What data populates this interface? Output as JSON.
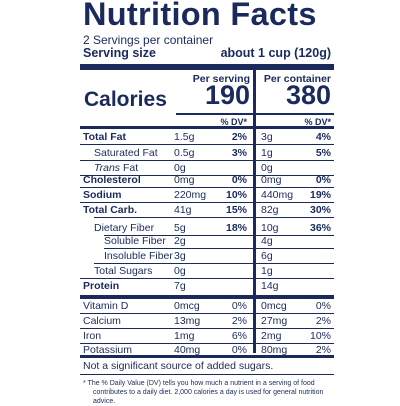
{
  "title": "Nutrition Facts",
  "servings": "2 Servings per container",
  "serving_size": {
    "label": "Serving size",
    "value": "about 1 cup (120g)"
  },
  "columns": {
    "per_serving": "Per serving",
    "per_container": "Per container"
  },
  "calories": {
    "label": "Calories",
    "per_serving": "190",
    "per_container": "380"
  },
  "dv_header": "% DV*",
  "nutrients": [
    {
      "name": "Total Fat",
      "amt1": "1.5g",
      "pct1": "2%",
      "amt2": "3g",
      "pct2": "4%"
    },
    {
      "name": "Saturated Fat",
      "amt1": "0.5g",
      "pct1": "3%",
      "amt2": "1g",
      "pct2": "5%"
    },
    {
      "name_italic": "Trans",
      "name_rest": " Fat",
      "amt1": "0g",
      "pct1": "",
      "amt2": "0g",
      "pct2": ""
    },
    {
      "name": "Cholesterol",
      "amt1": "0mg",
      "pct1": "0%",
      "amt2": "0mg",
      "pct2": "0%"
    },
    {
      "name": "Sodium",
      "amt1": "220mg",
      "pct1": "10%",
      "amt2": "440mg",
      "pct2": "19%"
    },
    {
      "name": "Total Carb.",
      "amt1": "41g",
      "pct1": "15%",
      "amt2": "82g",
      "pct2": "30%"
    },
    {
      "name": "Dietary Fiber",
      "amt1": "5g",
      "pct1": "18%",
      "amt2": "10g",
      "pct2": "36%"
    },
    {
      "name": "Soluble Fiber",
      "amt1": "2g",
      "pct1": "",
      "amt2": "4g",
      "pct2": ""
    },
    {
      "name": "Insoluble Fiber",
      "amt1": "3g",
      "pct1": "",
      "amt2": "6g",
      "pct2": ""
    },
    {
      "name": "Total Sugars",
      "amt1": "0g",
      "pct1": "",
      "amt2": "1g",
      "pct2": ""
    },
    {
      "name": "Protein",
      "amt1": "7g",
      "pct1": "",
      "amt2": "14g",
      "pct2": ""
    }
  ],
  "vitamins": [
    {
      "name": "Vitamin D",
      "amt1": "0mcg",
      "pct1": "0%",
      "amt2": "0mcg",
      "pct2": "0%"
    },
    {
      "name": "Calcium",
      "amt1": "13mg",
      "pct1": "2%",
      "amt2": "27mg",
      "pct2": "2%"
    },
    {
      "name": "Iron",
      "amt1": "1mg",
      "pct1": "6%",
      "amt2": "2mg",
      "pct2": "10%"
    },
    {
      "name": "Potassium",
      "amt1": "40mg",
      "pct1": "0%",
      "amt2": "80mg",
      "pct2": "2%"
    }
  ],
  "added_sugars_note": "Not a significant source of added sugars.",
  "footnote_line1": "* The % Daily Value (DV) tells you how much a nutrient in a serving of food",
  "footnote_line2": "contributes to a daily diet. 2,000 calories a day is used for general nutrition advice.",
  "colors": {
    "ink": "#1b2a5c",
    "background": "#ffffff"
  }
}
